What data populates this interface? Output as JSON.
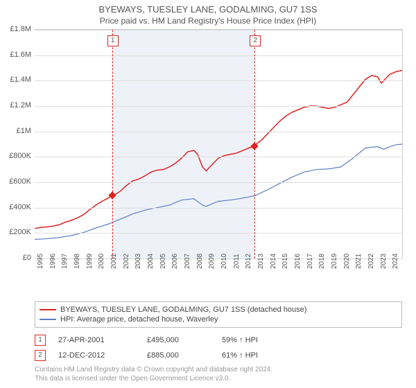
{
  "title": "BYEWAYS, TUESLEY LANE, GODALMING, GU7 1SS",
  "subtitle": "Price paid vs. HM Land Registry's House Price Index (HPI)",
  "chart": {
    "type": "line",
    "background_color": "#ffffff",
    "grid_color": "#dddddd",
    "shade_color": "#eef2f8",
    "marker_color": "#d22",
    "x_range": [
      1995,
      2025
    ],
    "y_range": [
      0,
      1800000
    ],
    "y_ticks": [
      {
        "v": 0,
        "label": "£0"
      },
      {
        "v": 200000,
        "label": "£200K"
      },
      {
        "v": 400000,
        "label": "£400K"
      },
      {
        "v": 600000,
        "label": "£600K"
      },
      {
        "v": 800000,
        "label": "£800K"
      },
      {
        "v": 1000000,
        "label": "£1M"
      },
      {
        "v": 1200000,
        "label": "£1.2M"
      },
      {
        "v": 1400000,
        "label": "£1.4M"
      },
      {
        "v": 1600000,
        "label": "£1.6M"
      },
      {
        "v": 1800000,
        "label": "£1.8M"
      }
    ],
    "x_ticks": [
      1995,
      1996,
      1997,
      1998,
      1999,
      2000,
      2001,
      2002,
      2003,
      2004,
      2005,
      2006,
      2007,
      2008,
      2009,
      2010,
      2011,
      2012,
      2013,
      2014,
      2015,
      2016,
      2017,
      2018,
      2019,
      2020,
      2021,
      2022,
      2023,
      2024
    ],
    "shade": {
      "from": 2001.32,
      "to": 2012.95
    },
    "markers": [
      {
        "n": "1",
        "x": 2001.32,
        "y": 495000
      },
      {
        "n": "2",
        "x": 2012.95,
        "y": 885000
      }
    ],
    "series": [
      {
        "name": "property",
        "label": "BYEWAYS, TUESLEY LANE, GODALMING, GU7 1SS (detached house)",
        "color": "#dd2222",
        "width": 1.5,
        "points": [
          [
            1995,
            235000
          ],
          [
            1995.5,
            245000
          ],
          [
            1996,
            248000
          ],
          [
            1996.5,
            255000
          ],
          [
            1997,
            265000
          ],
          [
            1997.5,
            285000
          ],
          [
            1998,
            300000
          ],
          [
            1998.5,
            320000
          ],
          [
            1999,
            345000
          ],
          [
            1999.5,
            385000
          ],
          [
            2000,
            420000
          ],
          [
            2000.5,
            450000
          ],
          [
            2001,
            475000
          ],
          [
            2001.32,
            495000
          ],
          [
            2001.5,
            500000
          ],
          [
            2002,
            530000
          ],
          [
            2002.5,
            575000
          ],
          [
            2003,
            610000
          ],
          [
            2003.5,
            625000
          ],
          [
            2004,
            650000
          ],
          [
            2004.5,
            680000
          ],
          [
            2005,
            695000
          ],
          [
            2005.5,
            700000
          ],
          [
            2006,
            720000
          ],
          [
            2006.5,
            750000
          ],
          [
            2007,
            790000
          ],
          [
            2007.5,
            840000
          ],
          [
            2008,
            850000
          ],
          [
            2008.3,
            820000
          ],
          [
            2008.7,
            720000
          ],
          [
            2009,
            690000
          ],
          [
            2009.5,
            740000
          ],
          [
            2010,
            790000
          ],
          [
            2010.5,
            810000
          ],
          [
            2011,
            820000
          ],
          [
            2011.5,
            830000
          ],
          [
            2012,
            850000
          ],
          [
            2012.5,
            870000
          ],
          [
            2012.95,
            885000
          ],
          [
            2013,
            895000
          ],
          [
            2013.5,
            930000
          ],
          [
            2014,
            980000
          ],
          [
            2014.5,
            1030000
          ],
          [
            2015,
            1080000
          ],
          [
            2015.5,
            1120000
          ],
          [
            2016,
            1150000
          ],
          [
            2016.5,
            1170000
          ],
          [
            2017,
            1190000
          ],
          [
            2017.5,
            1200000
          ],
          [
            2018,
            1200000
          ],
          [
            2018.5,
            1190000
          ],
          [
            2019,
            1180000
          ],
          [
            2019.5,
            1190000
          ],
          [
            2020,
            1210000
          ],
          [
            2020.5,
            1230000
          ],
          [
            2021,
            1290000
          ],
          [
            2021.5,
            1350000
          ],
          [
            2022,
            1410000
          ],
          [
            2022.5,
            1440000
          ],
          [
            2023,
            1430000
          ],
          [
            2023.3,
            1380000
          ],
          [
            2023.7,
            1420000
          ],
          [
            2024,
            1450000
          ],
          [
            2024.5,
            1470000
          ],
          [
            2025,
            1480000
          ]
        ]
      },
      {
        "name": "hpi",
        "label": "HPI: Average price, detached house, Waverley",
        "color": "#5b7fc7",
        "width": 1.2,
        "points": [
          [
            1995,
            150000
          ],
          [
            1996,
            155000
          ],
          [
            1997,
            165000
          ],
          [
            1998,
            180000
          ],
          [
            1999,
            205000
          ],
          [
            2000,
            240000
          ],
          [
            2001,
            270000
          ],
          [
            2002,
            310000
          ],
          [
            2003,
            350000
          ],
          [
            2004,
            380000
          ],
          [
            2005,
            400000
          ],
          [
            2006,
            420000
          ],
          [
            2007,
            460000
          ],
          [
            2008,
            470000
          ],
          [
            2008.7,
            420000
          ],
          [
            2009,
            410000
          ],
          [
            2010,
            450000
          ],
          [
            2011,
            460000
          ],
          [
            2012,
            475000
          ],
          [
            2013,
            495000
          ],
          [
            2014,
            540000
          ],
          [
            2015,
            590000
          ],
          [
            2016,
            640000
          ],
          [
            2017,
            680000
          ],
          [
            2018,
            700000
          ],
          [
            2019,
            705000
          ],
          [
            2020,
            720000
          ],
          [
            2021,
            790000
          ],
          [
            2022,
            870000
          ],
          [
            2023,
            880000
          ],
          [
            2023.5,
            860000
          ],
          [
            2024,
            880000
          ],
          [
            2024.5,
            895000
          ],
          [
            2025,
            900000
          ]
        ]
      }
    ]
  },
  "legend": {
    "items": [
      {
        "color": "#dd2222",
        "label": "BYEWAYS, TUESLEY LANE, GODALMING, GU7 1SS (detached house)"
      },
      {
        "color": "#5b7fc7",
        "label": "HPI: Average price, detached house, Waverley"
      }
    ]
  },
  "events": [
    {
      "n": "1",
      "date": "27-APR-2001",
      "price": "£495,000",
      "pct": "59% ↑ HPI"
    },
    {
      "n": "2",
      "date": "12-DEC-2012",
      "price": "£885,000",
      "pct": "61% ↑ HPI"
    }
  ],
  "footer": {
    "line1": "Contains HM Land Registry data © Crown copyright and database right 2024.",
    "line2": "This data is licensed under the Open Government Licence v3.0."
  }
}
